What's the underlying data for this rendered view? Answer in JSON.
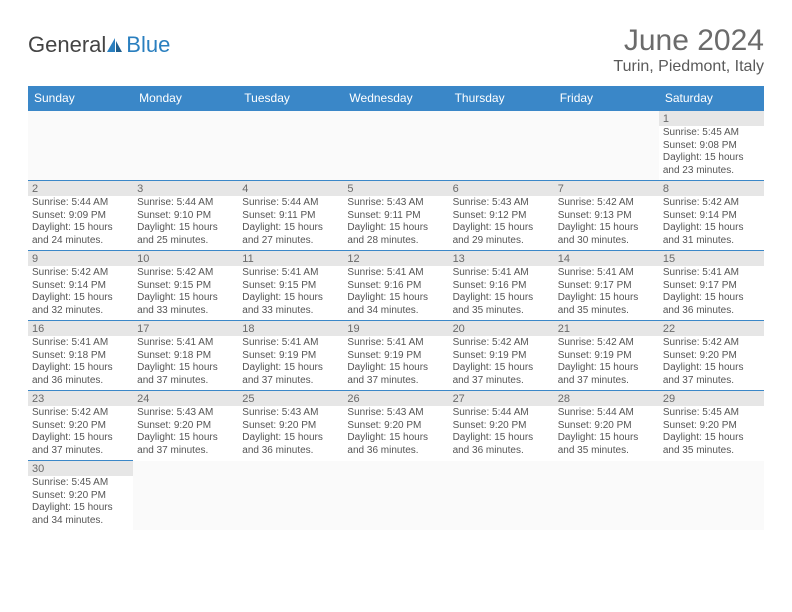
{
  "logo": {
    "general": "General",
    "blue": "Blue"
  },
  "title": "June 2024",
  "location": "Turin, Piedmont, Italy",
  "headers": [
    "Sunday",
    "Monday",
    "Tuesday",
    "Wednesday",
    "Thursday",
    "Friday",
    "Saturday"
  ],
  "colors": {
    "header_bg": "#3a87c8",
    "header_text": "#ffffff",
    "daynum_bg": "#e6e6e6",
    "border": "#3a87c8",
    "text": "#555555",
    "title_text": "#6b6b6b"
  },
  "weeks": [
    [
      null,
      null,
      null,
      null,
      null,
      null,
      {
        "n": "1",
        "sr": "Sunrise: 5:45 AM",
        "ss": "Sunset: 9:08 PM",
        "d1": "Daylight: 15 hours",
        "d2": "and 23 minutes."
      }
    ],
    [
      {
        "n": "2",
        "sr": "Sunrise: 5:44 AM",
        "ss": "Sunset: 9:09 PM",
        "d1": "Daylight: 15 hours",
        "d2": "and 24 minutes."
      },
      {
        "n": "3",
        "sr": "Sunrise: 5:44 AM",
        "ss": "Sunset: 9:10 PM",
        "d1": "Daylight: 15 hours",
        "d2": "and 25 minutes."
      },
      {
        "n": "4",
        "sr": "Sunrise: 5:44 AM",
        "ss": "Sunset: 9:11 PM",
        "d1": "Daylight: 15 hours",
        "d2": "and 27 minutes."
      },
      {
        "n": "5",
        "sr": "Sunrise: 5:43 AM",
        "ss": "Sunset: 9:11 PM",
        "d1": "Daylight: 15 hours",
        "d2": "and 28 minutes."
      },
      {
        "n": "6",
        "sr": "Sunrise: 5:43 AM",
        "ss": "Sunset: 9:12 PM",
        "d1": "Daylight: 15 hours",
        "d2": "and 29 minutes."
      },
      {
        "n": "7",
        "sr": "Sunrise: 5:42 AM",
        "ss": "Sunset: 9:13 PM",
        "d1": "Daylight: 15 hours",
        "d2": "and 30 minutes."
      },
      {
        "n": "8",
        "sr": "Sunrise: 5:42 AM",
        "ss": "Sunset: 9:14 PM",
        "d1": "Daylight: 15 hours",
        "d2": "and 31 minutes."
      }
    ],
    [
      {
        "n": "9",
        "sr": "Sunrise: 5:42 AM",
        "ss": "Sunset: 9:14 PM",
        "d1": "Daylight: 15 hours",
        "d2": "and 32 minutes."
      },
      {
        "n": "10",
        "sr": "Sunrise: 5:42 AM",
        "ss": "Sunset: 9:15 PM",
        "d1": "Daylight: 15 hours",
        "d2": "and 33 minutes."
      },
      {
        "n": "11",
        "sr": "Sunrise: 5:41 AM",
        "ss": "Sunset: 9:15 PM",
        "d1": "Daylight: 15 hours",
        "d2": "and 33 minutes."
      },
      {
        "n": "12",
        "sr": "Sunrise: 5:41 AM",
        "ss": "Sunset: 9:16 PM",
        "d1": "Daylight: 15 hours",
        "d2": "and 34 minutes."
      },
      {
        "n": "13",
        "sr": "Sunrise: 5:41 AM",
        "ss": "Sunset: 9:16 PM",
        "d1": "Daylight: 15 hours",
        "d2": "and 35 minutes."
      },
      {
        "n": "14",
        "sr": "Sunrise: 5:41 AM",
        "ss": "Sunset: 9:17 PM",
        "d1": "Daylight: 15 hours",
        "d2": "and 35 minutes."
      },
      {
        "n": "15",
        "sr": "Sunrise: 5:41 AM",
        "ss": "Sunset: 9:17 PM",
        "d1": "Daylight: 15 hours",
        "d2": "and 36 minutes."
      }
    ],
    [
      {
        "n": "16",
        "sr": "Sunrise: 5:41 AM",
        "ss": "Sunset: 9:18 PM",
        "d1": "Daylight: 15 hours",
        "d2": "and 36 minutes."
      },
      {
        "n": "17",
        "sr": "Sunrise: 5:41 AM",
        "ss": "Sunset: 9:18 PM",
        "d1": "Daylight: 15 hours",
        "d2": "and 37 minutes."
      },
      {
        "n": "18",
        "sr": "Sunrise: 5:41 AM",
        "ss": "Sunset: 9:19 PM",
        "d1": "Daylight: 15 hours",
        "d2": "and 37 minutes."
      },
      {
        "n": "19",
        "sr": "Sunrise: 5:41 AM",
        "ss": "Sunset: 9:19 PM",
        "d1": "Daylight: 15 hours",
        "d2": "and 37 minutes."
      },
      {
        "n": "20",
        "sr": "Sunrise: 5:42 AM",
        "ss": "Sunset: 9:19 PM",
        "d1": "Daylight: 15 hours",
        "d2": "and 37 minutes."
      },
      {
        "n": "21",
        "sr": "Sunrise: 5:42 AM",
        "ss": "Sunset: 9:19 PM",
        "d1": "Daylight: 15 hours",
        "d2": "and 37 minutes."
      },
      {
        "n": "22",
        "sr": "Sunrise: 5:42 AM",
        "ss": "Sunset: 9:20 PM",
        "d1": "Daylight: 15 hours",
        "d2": "and 37 minutes."
      }
    ],
    [
      {
        "n": "23",
        "sr": "Sunrise: 5:42 AM",
        "ss": "Sunset: 9:20 PM",
        "d1": "Daylight: 15 hours",
        "d2": "and 37 minutes."
      },
      {
        "n": "24",
        "sr": "Sunrise: 5:43 AM",
        "ss": "Sunset: 9:20 PM",
        "d1": "Daylight: 15 hours",
        "d2": "and 37 minutes."
      },
      {
        "n": "25",
        "sr": "Sunrise: 5:43 AM",
        "ss": "Sunset: 9:20 PM",
        "d1": "Daylight: 15 hours",
        "d2": "and 36 minutes."
      },
      {
        "n": "26",
        "sr": "Sunrise: 5:43 AM",
        "ss": "Sunset: 9:20 PM",
        "d1": "Daylight: 15 hours",
        "d2": "and 36 minutes."
      },
      {
        "n": "27",
        "sr": "Sunrise: 5:44 AM",
        "ss": "Sunset: 9:20 PM",
        "d1": "Daylight: 15 hours",
        "d2": "and 36 minutes."
      },
      {
        "n": "28",
        "sr": "Sunrise: 5:44 AM",
        "ss": "Sunset: 9:20 PM",
        "d1": "Daylight: 15 hours",
        "d2": "and 35 minutes."
      },
      {
        "n": "29",
        "sr": "Sunrise: 5:45 AM",
        "ss": "Sunset: 9:20 PM",
        "d1": "Daylight: 15 hours",
        "d2": "and 35 minutes."
      }
    ],
    [
      {
        "n": "30",
        "sr": "Sunrise: 5:45 AM",
        "ss": "Sunset: 9:20 PM",
        "d1": "Daylight: 15 hours",
        "d2": "and 34 minutes."
      },
      null,
      null,
      null,
      null,
      null,
      null
    ]
  ]
}
